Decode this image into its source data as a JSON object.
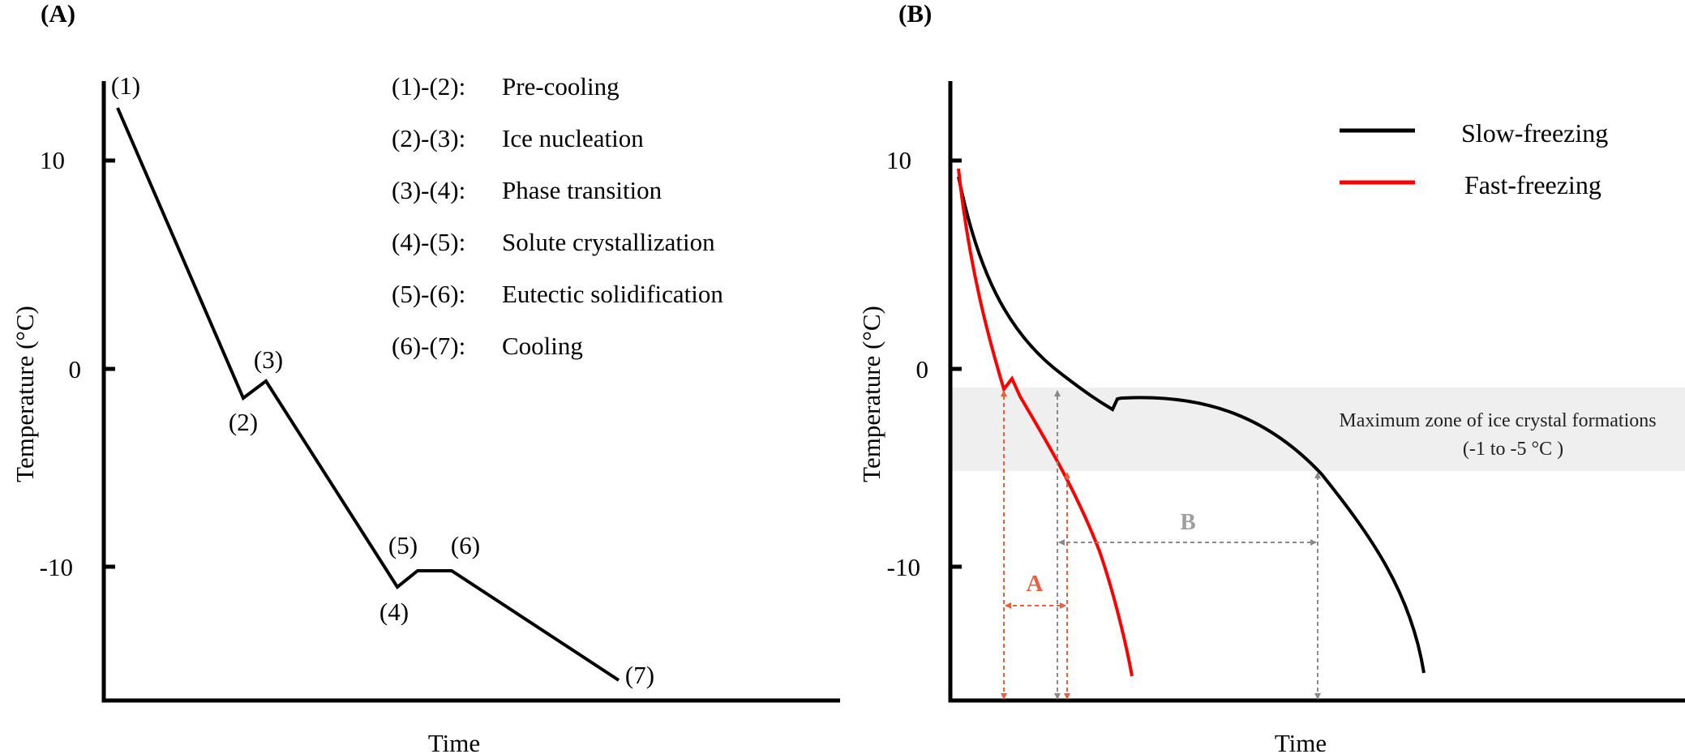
{
  "panel_a": {
    "letter": "(A)",
    "ylabel": "Temperature (°C)",
    "xlabel": "Time",
    "yticks": [
      "10",
      "0",
      "-10"
    ],
    "point_labels": [
      "(1)",
      "(2)",
      "(3)",
      "(4)",
      "(5)",
      "(6)",
      "(7)"
    ],
    "legend": [
      {
        "range": "(1)-(2):",
        "stage": "Pre-cooling"
      },
      {
        "range": "(2)-(3):",
        "stage": "Ice nucleation"
      },
      {
        "range": "(3)-(4):",
        "stage": "Phase transition"
      },
      {
        "range": "(4)-(5):",
        "stage": "Solute crystallization"
      },
      {
        "range": "(5)-(6):",
        "stage": "Eutectic solidification"
      },
      {
        "range": "(6)-(7):",
        "stage": "Cooling"
      }
    ],
    "line_color": "#000000"
  },
  "panel_b": {
    "letter": "(B)",
    "ylabel": "Temperature (°C)",
    "xlabel": "Time",
    "yticks": [
      "10",
      "0",
      "-10"
    ],
    "series": [
      {
        "name": "Slow-freezing",
        "color": "#000000"
      },
      {
        "name": "Fast-freezing",
        "color": "#ff0000"
      }
    ],
    "zone": {
      "label": "Maximum  zone of ice crystal formations",
      "range_label": "(-1 to -5  °C )",
      "color": "#efefef"
    },
    "interval_a": {
      "label": "A",
      "color": "#e8603c"
    },
    "interval_b": {
      "label": "B",
      "color": "#9e9e9e"
    }
  }
}
